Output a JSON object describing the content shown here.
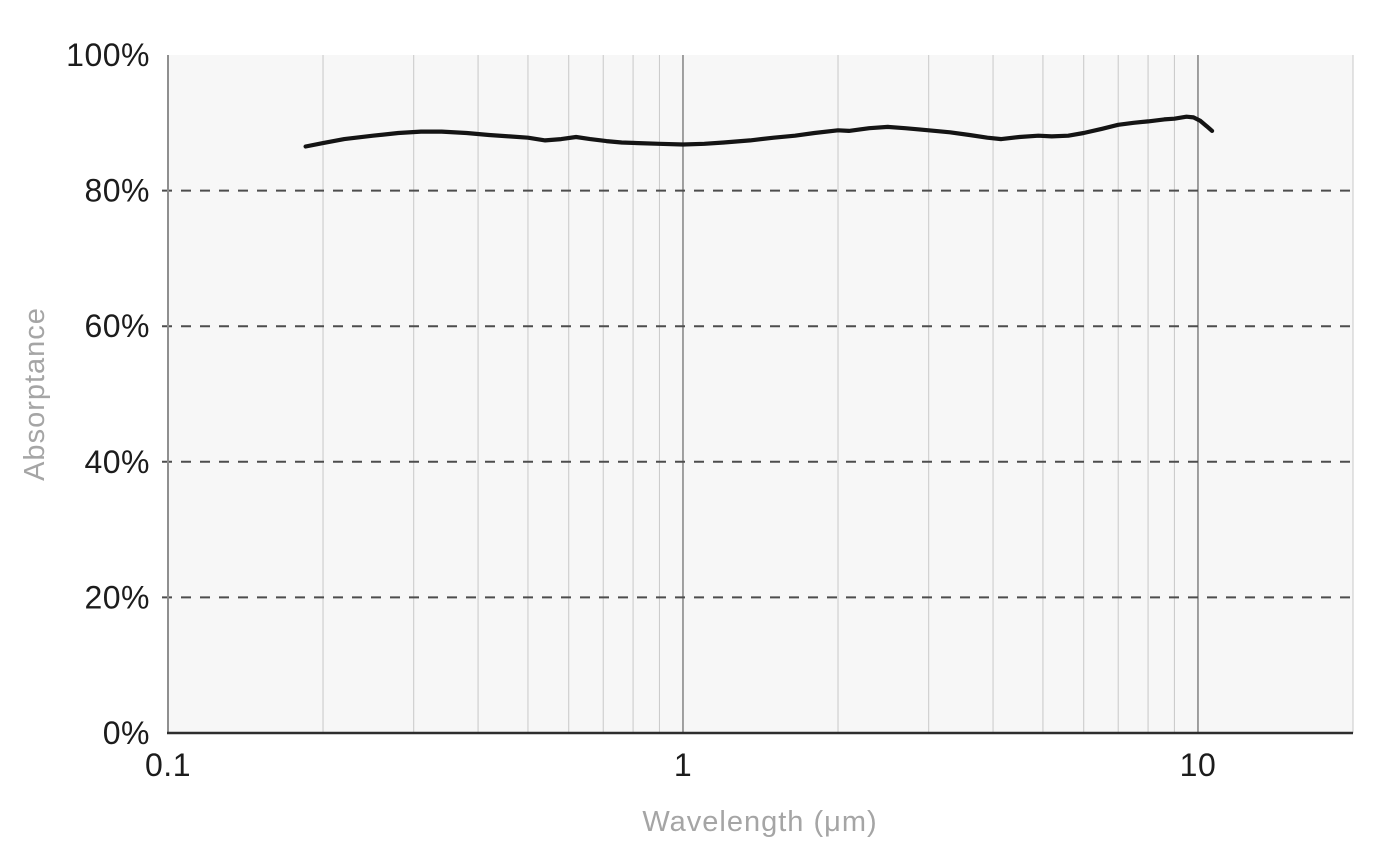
{
  "chart_data": {
    "type": "line",
    "title": "",
    "xlabel": "Wavelength (μm)",
    "ylabel": "Absorptance",
    "x_scale": "log",
    "xlim": [
      0.1,
      20
    ],
    "ylim": [
      0,
      100
    ],
    "legend": "none",
    "x_ticks": [
      {
        "v": 0.1,
        "label": "0.1"
      },
      {
        "v": 1,
        "label": "1"
      },
      {
        "v": 10,
        "label": "10"
      }
    ],
    "y_ticks": [
      {
        "v": 0,
        "label": "0%"
      },
      {
        "v": 20,
        "label": "20%"
      },
      {
        "v": 40,
        "label": "40%"
      },
      {
        "v": 60,
        "label": "60%"
      },
      {
        "v": 80,
        "label": "80%"
      },
      {
        "v": 100,
        "label": "100%"
      }
    ],
    "grid": {
      "x_minor": [
        0.2,
        0.3,
        0.4,
        0.5,
        0.6,
        0.7,
        0.8,
        0.9,
        2,
        3,
        4,
        5,
        6,
        7,
        8,
        9,
        20
      ],
      "x_major": [
        1,
        10
      ],
      "y_dashed": [
        20,
        40,
        60,
        80
      ]
    },
    "series": [
      {
        "name": "Absorptance",
        "color": "#141414",
        "points": [
          [
            0.185,
            86.5
          ],
          [
            0.2,
            87.0
          ],
          [
            0.22,
            87.6
          ],
          [
            0.25,
            88.1
          ],
          [
            0.28,
            88.5
          ],
          [
            0.31,
            88.7
          ],
          [
            0.34,
            88.7
          ],
          [
            0.38,
            88.5
          ],
          [
            0.42,
            88.2
          ],
          [
            0.46,
            88.0
          ],
          [
            0.5,
            87.8
          ],
          [
            0.54,
            87.4
          ],
          [
            0.58,
            87.6
          ],
          [
            0.62,
            87.9
          ],
          [
            0.66,
            87.6
          ],
          [
            0.71,
            87.3
          ],
          [
            0.76,
            87.1
          ],
          [
            0.82,
            87.0
          ],
          [
            0.9,
            86.9
          ],
          [
            1.0,
            86.8
          ],
          [
            1.1,
            86.9
          ],
          [
            1.2,
            87.1
          ],
          [
            1.35,
            87.4
          ],
          [
            1.5,
            87.8
          ],
          [
            1.65,
            88.1
          ],
          [
            1.8,
            88.5
          ],
          [
            2.0,
            88.9
          ],
          [
            2.1,
            88.8
          ],
          [
            2.3,
            89.2
          ],
          [
            2.5,
            89.4
          ],
          [
            2.7,
            89.2
          ],
          [
            3.0,
            88.9
          ],
          [
            3.3,
            88.6
          ],
          [
            3.6,
            88.2
          ],
          [
            3.9,
            87.8
          ],
          [
            4.15,
            87.6
          ],
          [
            4.5,
            87.9
          ],
          [
            4.9,
            88.1
          ],
          [
            5.2,
            88.0
          ],
          [
            5.6,
            88.1
          ],
          [
            6.0,
            88.5
          ],
          [
            6.5,
            89.1
          ],
          [
            7.0,
            89.7
          ],
          [
            7.5,
            90.0
          ],
          [
            8.0,
            90.2
          ],
          [
            8.6,
            90.5
          ],
          [
            9.0,
            90.6
          ],
          [
            9.5,
            90.9
          ],
          [
            9.8,
            90.8
          ],
          [
            10.1,
            90.3
          ],
          [
            10.4,
            89.5
          ],
          [
            10.65,
            88.8
          ]
        ]
      }
    ],
    "colors": {
      "plot_bg": "#f7f7f7",
      "grid_minor": "#c8c8c8",
      "grid_major": "#8a8a8a",
      "grid_dashed": "#4d4d4d",
      "axis_left": "#8f8f8f",
      "axis_bottom": "#2e2e2e",
      "tick_text": "#1c1c1c",
      "axis_title_text": "#a5a5a5"
    }
  }
}
